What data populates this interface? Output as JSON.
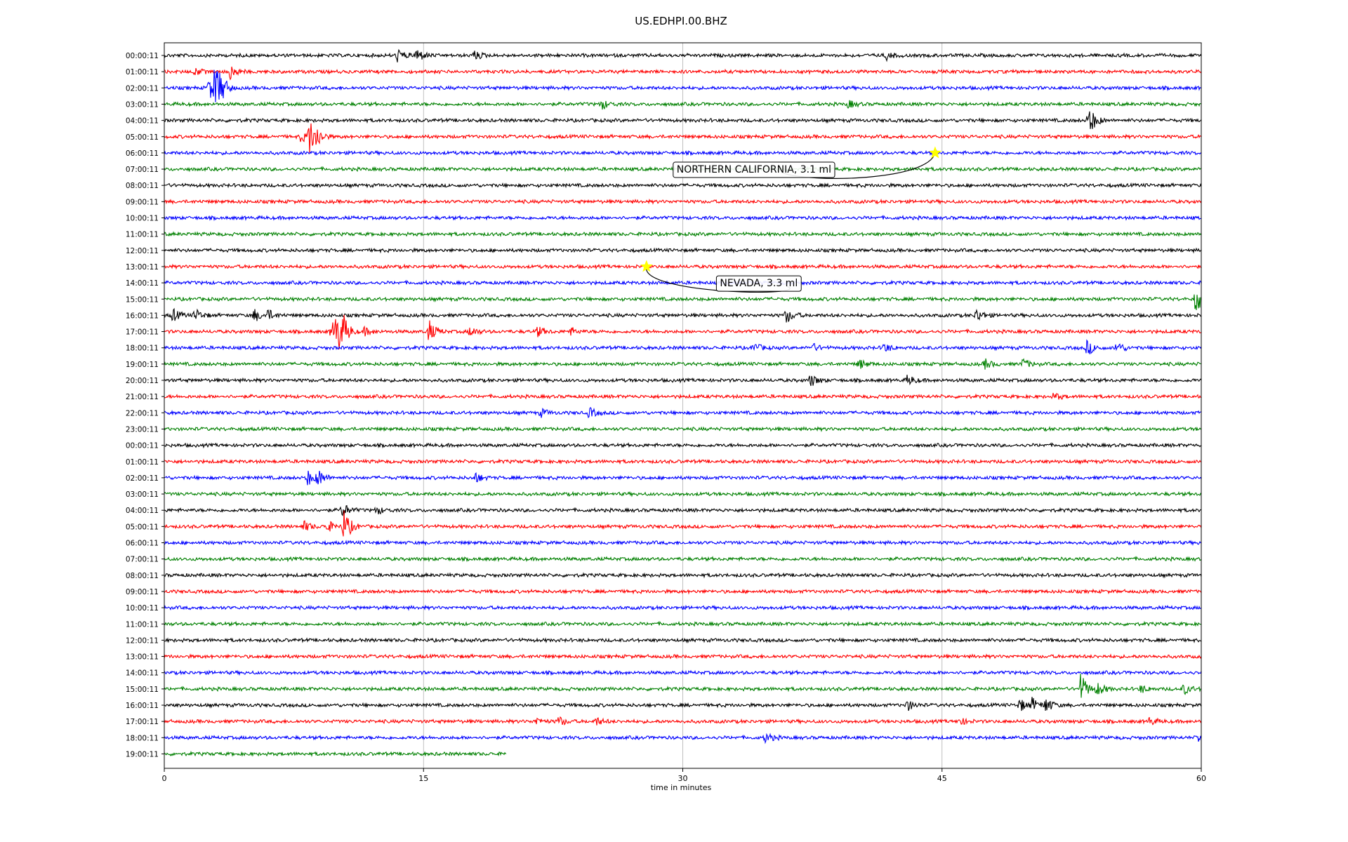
{
  "chart_data": {
    "type": "line",
    "title": "US.EDHPI.00.BHZ",
    "xlabel": "time in minutes",
    "ylabel": "",
    "xlim": [
      0,
      60
    ],
    "xticks": [
      0,
      15,
      30,
      45,
      60
    ],
    "grid": true,
    "colors": [
      "#000000",
      "#ff0000",
      "#0000ff",
      "#008000"
    ],
    "last_line_end_minute": 19.8,
    "lines": [
      "00:00:11",
      "01:00:11",
      "02:00:11",
      "03:00:11",
      "04:00:11",
      "05:00:11",
      "06:00:11",
      "07:00:11",
      "08:00:11",
      "09:00:11",
      "10:00:11",
      "11:00:11",
      "12:00:11",
      "13:00:11",
      "14:00:11",
      "15:00:11",
      "16:00:11",
      "17:00:11",
      "18:00:11",
      "19:00:11",
      "20:00:11",
      "21:00:11",
      "22:00:11",
      "23:00:11",
      "00:00:11",
      "01:00:11",
      "02:00:11",
      "03:00:11",
      "04:00:11",
      "05:00:11",
      "06:00:11",
      "07:00:11",
      "08:00:11",
      "09:00:11",
      "10:00:11",
      "11:00:11",
      "12:00:11",
      "13:00:11",
      "14:00:11",
      "15:00:11",
      "16:00:11",
      "17:00:11",
      "18:00:11",
      "19:00:11"
    ],
    "bursts": [
      {
        "line": 0,
        "t": 13.5,
        "amp": 0.5
      },
      {
        "line": 0,
        "t": 14.6,
        "amp": 0.6
      },
      {
        "line": 0,
        "t": 17.9,
        "amp": 0.4
      },
      {
        "line": 0,
        "t": 41.8,
        "amp": 0.3
      },
      {
        "line": 1,
        "t": 1.8,
        "amp": 0.3
      },
      {
        "line": 1,
        "t": 3.8,
        "amp": 0.6
      },
      {
        "line": 2,
        "t": 2.6,
        "amp": 0.9
      },
      {
        "line": 2,
        "t": 2.95,
        "amp": 1.7
      },
      {
        "line": 2,
        "t": 3.3,
        "amp": 0.5
      },
      {
        "line": 3,
        "t": 25.3,
        "amp": 0.4
      },
      {
        "line": 3,
        "t": 39.6,
        "amp": 0.3
      },
      {
        "line": 4,
        "t": 53.5,
        "amp": 1.2
      },
      {
        "line": 5,
        "t": 7.9,
        "amp": 0.4
      },
      {
        "line": 5,
        "t": 8.4,
        "amp": 1.4
      },
      {
        "line": 5,
        "t": 8.8,
        "amp": 0.5
      },
      {
        "line": 15,
        "t": 59.7,
        "amp": 1.2
      },
      {
        "line": 16,
        "t": 0.5,
        "amp": 0.5
      },
      {
        "line": 16,
        "t": 1.8,
        "amp": 0.5
      },
      {
        "line": 16,
        "t": 5.2,
        "amp": 0.5
      },
      {
        "line": 16,
        "t": 6.0,
        "amp": 0.4
      },
      {
        "line": 16,
        "t": 36.0,
        "amp": 0.6
      },
      {
        "line": 16,
        "t": 47.0,
        "amp": 0.5
      },
      {
        "line": 17,
        "t": 9.7,
        "amp": 0.8
      },
      {
        "line": 17,
        "t": 10.0,
        "amp": 1.7
      },
      {
        "line": 17,
        "t": 10.4,
        "amp": 0.6
      },
      {
        "line": 17,
        "t": 11.6,
        "amp": 0.3
      },
      {
        "line": 17,
        "t": 15.3,
        "amp": 0.9
      },
      {
        "line": 17,
        "t": 17.7,
        "amp": 0.4
      },
      {
        "line": 17,
        "t": 21.6,
        "amp": 0.4
      },
      {
        "line": 17,
        "t": 23.5,
        "amp": 0.3
      },
      {
        "line": 18,
        "t": 34.1,
        "amp": 0.4
      },
      {
        "line": 18,
        "t": 37.5,
        "amp": 0.3
      },
      {
        "line": 18,
        "t": 41.6,
        "amp": 0.4
      },
      {
        "line": 18,
        "t": 53.4,
        "amp": 0.6
      },
      {
        "line": 18,
        "t": 55.1,
        "amp": 0.5
      },
      {
        "line": 19,
        "t": 40.2,
        "amp": 0.4
      },
      {
        "line": 19,
        "t": 47.5,
        "amp": 0.4
      },
      {
        "line": 19,
        "t": 49.7,
        "amp": 0.4
      },
      {
        "line": 20,
        "t": 37.4,
        "amp": 0.5
      },
      {
        "line": 20,
        "t": 43.0,
        "amp": 0.4
      },
      {
        "line": 21,
        "t": 51.5,
        "amp": 0.3
      },
      {
        "line": 22,
        "t": 21.8,
        "amp": 0.3
      },
      {
        "line": 22,
        "t": 24.6,
        "amp": 0.4
      },
      {
        "line": 26,
        "t": 8.3,
        "amp": 0.6
      },
      {
        "line": 26,
        "t": 8.9,
        "amp": 0.6
      },
      {
        "line": 26,
        "t": 18.0,
        "amp": 0.4
      },
      {
        "line": 28,
        "t": 10.3,
        "amp": 0.6
      },
      {
        "line": 28,
        "t": 12.3,
        "amp": 0.3
      },
      {
        "line": 29,
        "t": 8.1,
        "amp": 0.4
      },
      {
        "line": 29,
        "t": 9.4,
        "amp": 0.5
      },
      {
        "line": 29,
        "t": 10.4,
        "amp": 1.3
      },
      {
        "line": 39,
        "t": 53.0,
        "amp": 1.3
      },
      {
        "line": 39,
        "t": 54.0,
        "amp": 0.5
      },
      {
        "line": 39,
        "t": 56.5,
        "amp": 0.3
      },
      {
        "line": 39,
        "t": 59.0,
        "amp": 0.4
      },
      {
        "line": 40,
        "t": 43.0,
        "amp": 0.4
      },
      {
        "line": 40,
        "t": 49.5,
        "amp": 0.5
      },
      {
        "line": 40,
        "t": 50.2,
        "amp": 0.5
      },
      {
        "line": 40,
        "t": 51.0,
        "amp": 0.6
      },
      {
        "line": 41,
        "t": 21.5,
        "amp": 0.3
      },
      {
        "line": 41,
        "t": 22.8,
        "amp": 0.4
      },
      {
        "line": 41,
        "t": 25.0,
        "amp": 0.3
      },
      {
        "line": 41,
        "t": 46.0,
        "amp": 0.3
      },
      {
        "line": 41,
        "t": 57.0,
        "amp": 0.3
      },
      {
        "line": 42,
        "t": 34.8,
        "amp": 0.4
      },
      {
        "line": 42,
        "t": 59.8,
        "amp": 0.3
      }
    ],
    "events": [
      {
        "label": "NORTHERN CALIFORNIA, 3.1 ml",
        "line": 6,
        "minute": 44.6
      },
      {
        "label": "NEVADA, 3.3 ml",
        "line": 13,
        "minute": 27.9
      }
    ]
  }
}
